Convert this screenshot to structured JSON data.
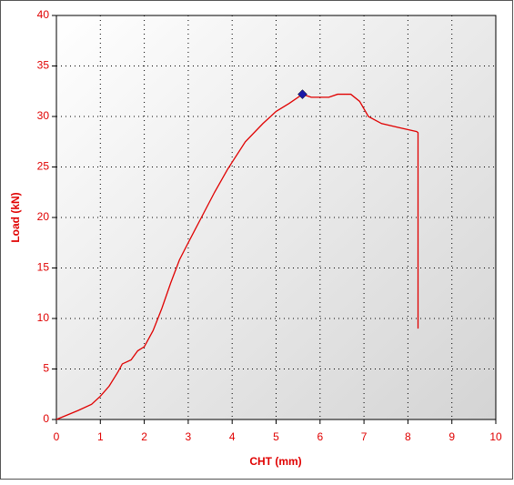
{
  "chart_data": {
    "type": "line",
    "xlabel": "CHT (mm)",
    "ylabel": "Load (kN)",
    "x": [
      0,
      0.5,
      0.8,
      1.0,
      1.2,
      1.4,
      1.5,
      1.7,
      1.85,
      2.0,
      2.2,
      2.4,
      2.6,
      2.8,
      3.0,
      3.3,
      3.6,
      3.9,
      4.3,
      4.7,
      5.0,
      5.3,
      5.6,
      5.8,
      6.2,
      6.4,
      6.7,
      6.9,
      7.1,
      7.4,
      7.8,
      8.2,
      8.23,
      8.23
    ],
    "series": [
      {
        "color": "#e00000",
        "values": [
          0,
          0.9,
          1.5,
          2.3,
          3.3,
          4.7,
          5.5,
          5.9,
          6.8,
          7.2,
          8.8,
          11,
          13.5,
          15.8,
          17.5,
          20,
          22.5,
          24.8,
          27.5,
          29.3,
          30.5,
          31.3,
          32.2,
          31.9,
          31.9,
          32.2,
          32.2,
          31.5,
          30,
          29.3,
          28.9,
          28.5,
          28.4,
          9
        ]
      }
    ],
    "marker": {
      "x": 5.6,
      "y": 32.2,
      "color": "#1a1aa8"
    },
    "xlim": [
      0,
      10
    ],
    "xticks": [
      0,
      1,
      2,
      3,
      4,
      5,
      6,
      7,
      8,
      9,
      10
    ],
    "ylim": [
      0,
      40
    ],
    "yticks": [
      0,
      5,
      10,
      15,
      20,
      25,
      30,
      35,
      40
    ],
    "grid": true,
    "text_color": "#e00000"
  }
}
